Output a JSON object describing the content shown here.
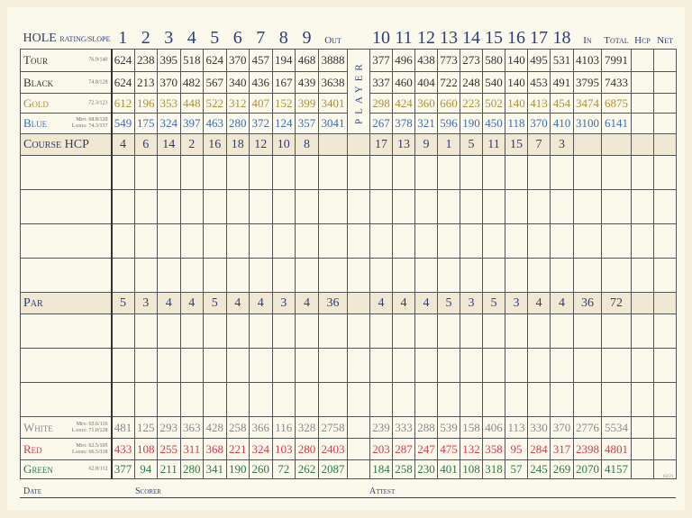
{
  "header": {
    "hole_label": "HOLE",
    "rating_label": "RATING/SLOPE",
    "front": [
      "1",
      "2",
      "3",
      "4",
      "5",
      "6",
      "7",
      "8",
      "9"
    ],
    "out": "Out",
    "back": [
      "10",
      "11",
      "12",
      "13",
      "14",
      "15",
      "16",
      "17",
      "18"
    ],
    "in": "In",
    "total": "Total",
    "hcp": "Hcp",
    "net": "Net"
  },
  "player_label": "PLAYER",
  "tees_top": [
    {
      "name": "Tour",
      "rating": [
        "76.9/140"
      ],
      "color": "#333333",
      "front": [
        "624",
        "238",
        "395",
        "518",
        "624",
        "370",
        "457",
        "194",
        "468"
      ],
      "out": "3888",
      "back": [
        "377",
        "496",
        "438",
        "773",
        "273",
        "580",
        "140",
        "495",
        "531"
      ],
      "in": "4103",
      "total": "7991"
    },
    {
      "name": "Black",
      "rating": [
        "74.8/128"
      ],
      "color": "#333333",
      "front": [
        "624",
        "213",
        "370",
        "482",
        "567",
        "340",
        "436",
        "167",
        "439"
      ],
      "out": "3638",
      "back": [
        "337",
        "460",
        "404",
        "722",
        "248",
        "540",
        "140",
        "453",
        "491"
      ],
      "in": "3795",
      "total": "7433"
    },
    {
      "name": "Gold",
      "rating": [
        "72.3/123"
      ],
      "color": "#b08f3a",
      "front": [
        "612",
        "196",
        "353",
        "448",
        "522",
        "312",
        "407",
        "152",
        "399"
      ],
      "out": "3401",
      "back": [
        "298",
        "424",
        "360",
        "660",
        "223",
        "502",
        "140",
        "413",
        "454"
      ],
      "in": "3474",
      "total": "6875"
    },
    {
      "name": "Blue",
      "rating": [
        "Men: 68.8/120",
        "Ladies: 74.3/137"
      ],
      "color": "#3d6db0",
      "front": [
        "549",
        "175",
        "324",
        "397",
        "463",
        "280",
        "372",
        "124",
        "357"
      ],
      "out": "3041",
      "back": [
        "267",
        "378",
        "321",
        "596",
        "190",
        "450",
        "118",
        "370",
        "410"
      ],
      "in": "3100",
      "total": "6141"
    }
  ],
  "course_hcp": {
    "label": "Course HCP",
    "front": [
      "4",
      "6",
      "14",
      "2",
      "16",
      "18",
      "12",
      "10",
      "8"
    ],
    "out": "",
    "back": [
      "17",
      "13",
      "9",
      "1",
      "5",
      "11",
      "15",
      "7",
      "3"
    ],
    "in": "",
    "total": ""
  },
  "par": {
    "label": "Par",
    "front": [
      "5",
      "3",
      "4",
      "4",
      "5",
      "4",
      "4",
      "3",
      "4"
    ],
    "out": "36",
    "back": [
      "4",
      "4",
      "4",
      "5",
      "3",
      "5",
      "3",
      "4",
      "4"
    ],
    "in": "36",
    "total": "72"
  },
  "tees_bottom": [
    {
      "name": "White",
      "rating": [
        "Men: 65.6/116",
        "Ladies: 71.0/128"
      ],
      "color": "#8a8a8a",
      "front": [
        "481",
        "125",
        "293",
        "363",
        "428",
        "258",
        "366",
        "116",
        "328"
      ],
      "out": "2758",
      "back": [
        "239",
        "333",
        "288",
        "539",
        "158",
        "406",
        "113",
        "330",
        "370"
      ],
      "in": "2776",
      "total": "5534"
    },
    {
      "name": "Red",
      "rating": [
        "Men: 62.5/105",
        "Ladies: 66.5/118"
      ],
      "color": "#d23c4c",
      "front": [
        "433",
        "108",
        "255",
        "311",
        "368",
        "221",
        "324",
        "103",
        "280"
      ],
      "out": "2403",
      "back": [
        "203",
        "287",
        "247",
        "475",
        "132",
        "358",
        "95",
        "284",
        "317"
      ],
      "in": "2398",
      "total": "4801"
    },
    {
      "name": "Green",
      "rating": [
        "62.8/112"
      ],
      "color": "#2b7a45",
      "front": [
        "377",
        "94",
        "211",
        "280",
        "341",
        "190",
        "260",
        "72",
        "262"
      ],
      "out": "2087",
      "back": [
        "184",
        "258",
        "230",
        "401",
        "108",
        "318",
        "57",
        "245",
        "269"
      ],
      "in": "2070",
      "total": "4157"
    }
  ],
  "footer": {
    "date": "Date",
    "scorer": "Scorer",
    "attest": "Attest",
    "code": "02/21"
  }
}
